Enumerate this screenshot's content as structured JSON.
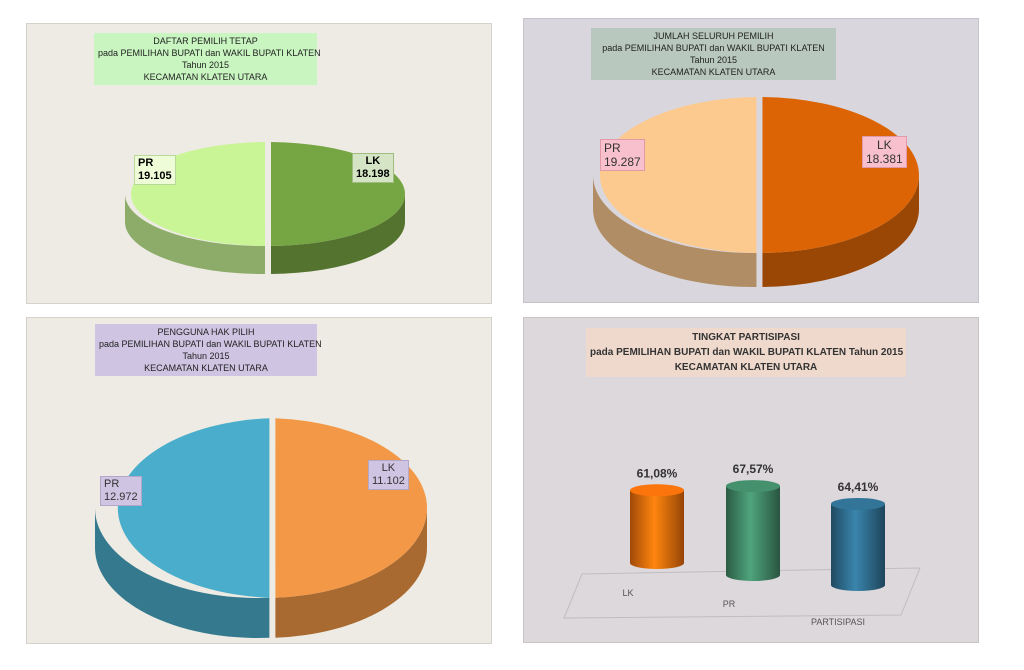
{
  "charts": [
    {
      "title_lines": [
        "DAFTAR PEMILIH TETAP",
        "pada PEMILIHAN BUPATI dan WAKIL BUPATI KLATEN",
        "Tahun 2015",
        "KECAMATAN KLATEN UTARA"
      ],
      "labels": [
        {
          "cat": "PR",
          "val": "19.105"
        },
        {
          "cat": "LK",
          "val": "18.198"
        }
      ],
      "colors": {
        "pr": "#c9f596",
        "lk": "#76a543",
        "bg": "#edebe3",
        "title_bg": "#c9f5c1",
        "label_bg_pr": "#eefcd8",
        "label_bg_lk": "#d4e4c4"
      }
    },
    {
      "title_lines": [
        "JUMLAH SELURUH PEMILIH",
        "pada PEMILIHAN BUPATI dan WAKIL BUPATI KLATEN",
        "Tahun 2015",
        "KECAMATAN KLATEN UTARA"
      ],
      "labels": [
        {
          "cat": "PR",
          "val": "19.287"
        },
        {
          "cat": "LK",
          "val": "18.381"
        }
      ],
      "colors": {
        "pr": "#fcc98f",
        "lk": "#dc6405",
        "bg": "#d9d7dd",
        "title_bg": "#b9c8bf",
        "label_bg_pr": "#f8c0cc",
        "label_bg_lk": "#f8c0cc"
      }
    },
    {
      "title_lines": [
        "PENGGUNA HAK PILIH",
        "pada PEMILIHAN BUPATI dan WAKIL BUPATI KLATEN",
        "Tahun 2015",
        "KECAMATAN KLATEN UTARA"
      ],
      "labels": [
        {
          "cat": "PR",
          "val": "12.972"
        },
        {
          "cat": "LK",
          "val": "11.102"
        }
      ],
      "colors": {
        "pr": "#4aadcb",
        "lk": "#f29846",
        "bg": "#edebe3",
        "title_bg": "#cfc4e2",
        "label_bg_pr": "#cfc4e2",
        "label_bg_lk": "#cfc4e2"
      }
    }
  ],
  "bar_chart": {
    "title_lines": [
      "TINGKAT PARTISIPASI",
      "pada PEMILIHAN BUPATI dan WAKIL BUPATI KLATEN Tahun 2015",
      "KECAMATAN KLATEN UTARA"
    ],
    "colors": {
      "bg": "#dcd8dc",
      "title_bg": "#efd9cc"
    }
  },
  "chart_data": [
    {
      "type": "pie",
      "categories": [
        "PR",
        "LK"
      ],
      "values": [
        19105,
        18198
      ]
    },
    {
      "type": "pie",
      "categories": [
        "PR",
        "LK"
      ],
      "values": [
        19287,
        18381
      ]
    },
    {
      "type": "pie",
      "categories": [
        "PR",
        "LK"
      ],
      "values": [
        12972,
        11102
      ]
    },
    {
      "type": "bar",
      "categories": [
        "LK",
        "PR",
        "PARTISIPASI"
      ],
      "values": [
        61.08,
        67.57,
        64.41
      ],
      "value_labels": [
        "61,08%",
        "67,57%",
        "64,41%"
      ],
      "colors": [
        "#e56a0b",
        "#3f8363",
        "#2e6a8a"
      ]
    }
  ]
}
